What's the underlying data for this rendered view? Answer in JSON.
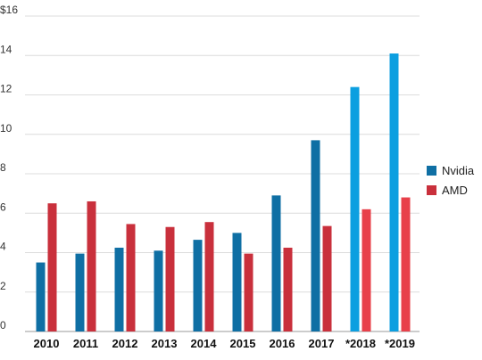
{
  "chart_data": {
    "type": "bar",
    "categories": [
      "2010",
      "2011",
      "2012",
      "2013",
      "2014",
      "2015",
      "2016",
      "2017",
      "*2018",
      "*2019"
    ],
    "series": [
      {
        "name": "Nvidia",
        "values": [
          3.5,
          3.95,
          4.25,
          4.1,
          4.65,
          5.0,
          6.9,
          9.7,
          12.4,
          14.1
        ],
        "colors": [
          "#0f6fa4",
          "#0f6fa4",
          "#0f6fa4",
          "#0f6fa4",
          "#0f6fa4",
          "#0f6fa4",
          "#0f6fa4",
          "#0f6fa4",
          "#0c9fe0",
          "#0c9fe0"
        ]
      },
      {
        "name": "AMD",
        "values": [
          6.5,
          6.6,
          5.45,
          5.3,
          5.55,
          3.95,
          4.25,
          5.35,
          6.2,
          6.8
        ],
        "colors": [
          "#c9303c",
          "#c9303c",
          "#c9303c",
          "#c9303c",
          "#c9303c",
          "#c9303c",
          "#c9303c",
          "#c9303c",
          "#e8404a",
          "#e8404a"
        ]
      }
    ],
    "yticks": [
      "0",
      "2",
      "4",
      "6",
      "8",
      "10",
      "12",
      "14",
      "$16"
    ],
    "ylim": [
      0,
      16
    ],
    "grid": true,
    "legend_position": "right",
    "title": "",
    "xlabel": "",
    "ylabel": ""
  },
  "legend": [
    {
      "label": "Nvidia",
      "color": "#0f6fa4"
    },
    {
      "label": "AMD",
      "color": "#c9303c"
    }
  ]
}
